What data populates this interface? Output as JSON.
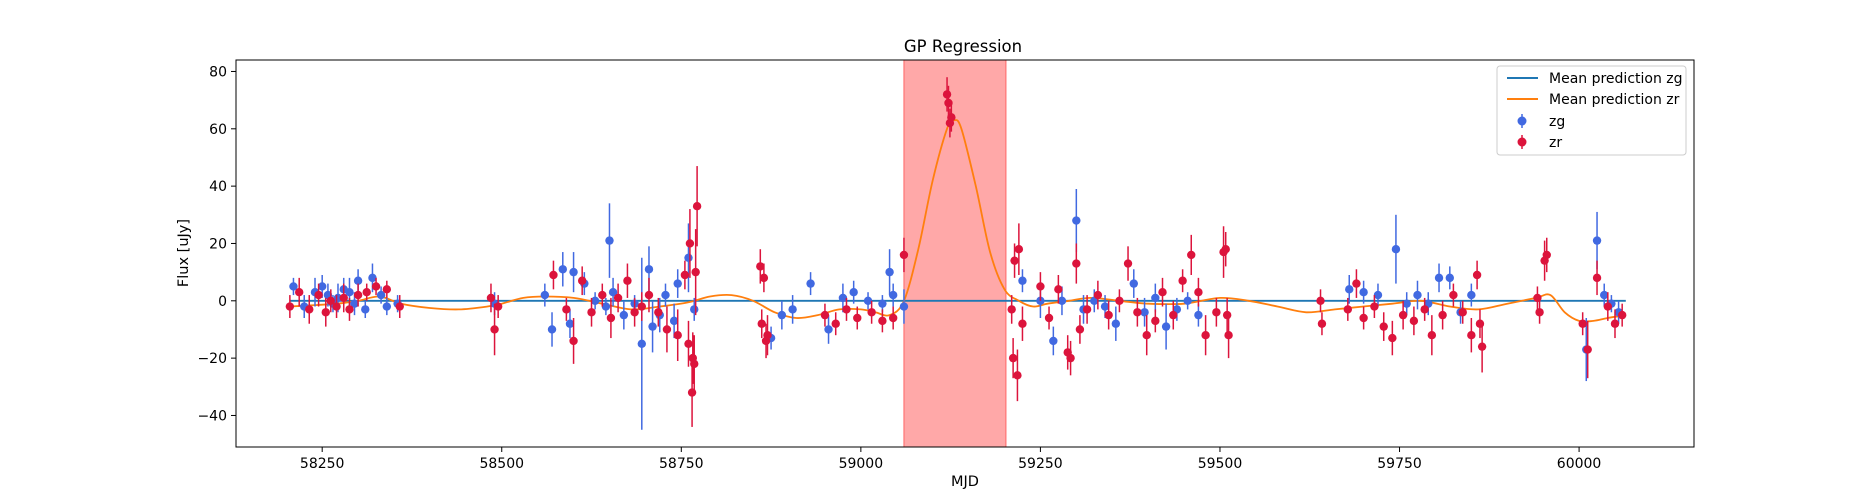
{
  "chart_data": {
    "type": "scatter",
    "title": "GP Regression",
    "xlabel": "MJD",
    "ylabel": "Flux [uJy]",
    "xlim": [
      58130,
      60160
    ],
    "ylim": [
      -51,
      84
    ],
    "xticks": [
      58250,
      58500,
      58750,
      59000,
      59250,
      59500,
      59750,
      60000
    ],
    "yticks": [
      -40,
      -20,
      0,
      20,
      40,
      60,
      80
    ],
    "grid": false,
    "legend_position": "top-right",
    "highlight_region": {
      "x0": 59060,
      "x1": 59202,
      "color": "#ff9999"
    },
    "lines": [
      {
        "name": "Mean prediction zg",
        "color": "#1f77b4",
        "x": [
          58205,
          60065
        ],
        "y": [
          0,
          0
        ]
      },
      {
        "name": "Mean prediction zr",
        "color": "#ff7f0e",
        "x": [
          58205,
          58240,
          58270,
          58300,
          58330,
          58360,
          58400,
          58440,
          58480,
          58500,
          58530,
          58560,
          58600,
          58640,
          58680,
          58720,
          58760,
          58790,
          58820,
          58850,
          58880,
          58910,
          58940,
          58970,
          59000,
          59020,
          59040,
          59060,
          59080,
          59100,
          59120,
          59130,
          59140,
          59160,
          59180,
          59200,
          59220,
          59240,
          59260,
          59290,
          59320,
          59360,
          59400,
          59450,
          59500,
          59540,
          59580,
          59620,
          59660,
          59700,
          59740,
          59780,
          59820,
          59860,
          59900,
          59940,
          59960,
          59980,
          60000,
          60020,
          60040,
          60065
        ],
        "y": [
          -2,
          -1.5,
          -1,
          0,
          1.5,
          -1,
          -2.5,
          -3,
          -2,
          -1,
          1,
          1.5,
          1,
          -1,
          -3,
          -2,
          -0.5,
          1.5,
          2,
          0,
          -4,
          -6,
          -5,
          -3,
          -3,
          -4,
          -5,
          0,
          18,
          42,
          60,
          63,
          60,
          40,
          17,
          4,
          0,
          -2,
          -1,
          0,
          1,
          0,
          -1,
          -1,
          1,
          0,
          -2,
          -4,
          -3,
          -2,
          -1,
          0,
          -2,
          -3,
          -1,
          1,
          2,
          -4,
          -7,
          -7,
          -6,
          -5
        ]
      }
    ],
    "series": [
      {
        "name": "zg",
        "color": "#4169e1",
        "points": [
          [
            58210,
            5,
            3
          ],
          [
            58225,
            -2,
            4
          ],
          [
            58240,
            3,
            5
          ],
          [
            58250,
            5,
            4
          ],
          [
            58258,
            2,
            4
          ],
          [
            58265,
            -1,
            3
          ],
          [
            58272,
            1,
            5
          ],
          [
            58280,
            4,
            4
          ],
          [
            58288,
            3,
            5
          ],
          [
            58295,
            -1,
            4
          ],
          [
            58300,
            7,
            4
          ],
          [
            58310,
            -3,
            3
          ],
          [
            58320,
            8,
            5
          ],
          [
            58332,
            2,
            3
          ],
          [
            58340,
            -2,
            3
          ],
          [
            58355,
            -1,
            3
          ],
          [
            58490,
            -1,
            4
          ],
          [
            58560,
            2,
            4
          ],
          [
            58570,
            -10,
            6
          ],
          [
            58585,
            11,
            6
          ],
          [
            58595,
            -8,
            5
          ],
          [
            58600,
            10,
            7
          ],
          [
            58615,
            6,
            4
          ],
          [
            58630,
            0,
            3
          ],
          [
            58645,
            -2,
            3
          ],
          [
            58650,
            21,
            13
          ],
          [
            58655,
            3,
            5
          ],
          [
            58670,
            -5,
            5
          ],
          [
            58685,
            -1,
            3
          ],
          [
            58695,
            -15,
            30
          ],
          [
            58705,
            11,
            8
          ],
          [
            58710,
            -9,
            9
          ],
          [
            58720,
            -5,
            6
          ],
          [
            58728,
            2,
            4
          ],
          [
            58740,
            -7,
            6
          ],
          [
            58745,
            6,
            5
          ],
          [
            58760,
            15,
            12
          ],
          [
            58768,
            -3,
            4
          ],
          [
            58875,
            -13,
            4
          ],
          [
            58890,
            -5,
            5
          ],
          [
            58905,
            -3,
            5
          ],
          [
            58930,
            6,
            4
          ],
          [
            58955,
            -10,
            5
          ],
          [
            58975,
            1,
            5
          ],
          [
            58990,
            3,
            4
          ],
          [
            59010,
            0,
            3
          ],
          [
            59030,
            -1,
            3
          ],
          [
            59040,
            10,
            8
          ],
          [
            59045,
            2,
            4
          ],
          [
            59060,
            -2,
            6
          ],
          [
            59225,
            7,
            4
          ],
          [
            59250,
            0,
            6
          ],
          [
            59268,
            -14,
            5
          ],
          [
            59280,
            0,
            5
          ],
          [
            59300,
            28,
            11
          ],
          [
            59310,
            -3,
            5
          ],
          [
            59325,
            0,
            4
          ],
          [
            59340,
            -2,
            4
          ],
          [
            59355,
            -8,
            6
          ],
          [
            59380,
            6,
            5
          ],
          [
            59395,
            -4,
            5
          ],
          [
            59410,
            1,
            5
          ],
          [
            59425,
            -9,
            8
          ],
          [
            59440,
            -3,
            4
          ],
          [
            59455,
            0,
            3
          ],
          [
            59470,
            -5,
            4
          ],
          [
            59680,
            4,
            5
          ],
          [
            59700,
            3,
            4
          ],
          [
            59720,
            2,
            4
          ],
          [
            59745,
            18,
            12
          ],
          [
            59760,
            -1,
            4
          ],
          [
            59775,
            2,
            5
          ],
          [
            59790,
            -1,
            4
          ],
          [
            59805,
            8,
            5
          ],
          [
            59820,
            8,
            4
          ],
          [
            59835,
            -4,
            4
          ],
          [
            59850,
            2,
            4
          ],
          [
            60010,
            -17,
            11
          ],
          [
            60025,
            21,
            10
          ],
          [
            60035,
            2,
            4
          ],
          [
            60045,
            -1,
            3
          ],
          [
            60055,
            -4,
            4
          ]
        ]
      },
      {
        "name": "zr",
        "color": "#dc143c",
        "points": [
          [
            58205,
            -2,
            4
          ],
          [
            58218,
            3,
            5
          ],
          [
            58232,
            -3,
            5
          ],
          [
            58245,
            2,
            4
          ],
          [
            58255,
            -4,
            5
          ],
          [
            58262,
            0,
            4
          ],
          [
            58270,
            -2,
            4
          ],
          [
            58280,
            1,
            5
          ],
          [
            58288,
            -3,
            4
          ],
          [
            58300,
            2,
            4
          ],
          [
            58312,
            3,
            3
          ],
          [
            58325,
            5,
            3
          ],
          [
            58340,
            4,
            3
          ],
          [
            58358,
            -2,
            4
          ],
          [
            58485,
            1,
            5
          ],
          [
            58490,
            -10,
            9
          ],
          [
            58495,
            -2,
            4
          ],
          [
            58572,
            9,
            5
          ],
          [
            58590,
            -3,
            4
          ],
          [
            58600,
            -14,
            8
          ],
          [
            58612,
            7,
            5
          ],
          [
            58625,
            -4,
            5
          ],
          [
            58640,
            2,
            4
          ],
          [
            58652,
            -6,
            7
          ],
          [
            58662,
            1,
            5
          ],
          [
            58675,
            7,
            6
          ],
          [
            58685,
            -4,
            5
          ],
          [
            58695,
            -2,
            5
          ],
          [
            58705,
            2,
            6
          ],
          [
            58718,
            -4,
            5
          ],
          [
            58730,
            -10,
            8
          ],
          [
            58745,
            -12,
            9
          ],
          [
            58755,
            9,
            5
          ],
          [
            58760,
            -15,
            8
          ],
          [
            58762,
            20,
            12
          ],
          [
            58765,
            -32,
            12
          ],
          [
            58766,
            -20,
            9
          ],
          [
            58768,
            -22,
            10
          ],
          [
            58770,
            10,
            15
          ],
          [
            58772,
            33,
            14
          ],
          [
            58860,
            12,
            6
          ],
          [
            58862,
            -8,
            5
          ],
          [
            58865,
            8,
            5
          ],
          [
            58868,
            -14,
            6
          ],
          [
            58870,
            -12,
            7
          ],
          [
            58950,
            -5,
            4
          ],
          [
            58965,
            -8,
            4
          ],
          [
            58980,
            -3,
            4
          ],
          [
            58995,
            -6,
            4
          ],
          [
            59015,
            -4,
            4
          ],
          [
            59030,
            -7,
            4
          ],
          [
            59045,
            -6,
            4
          ],
          [
            59060,
            16,
            6
          ],
          [
            59120,
            72,
            6
          ],
          [
            59122,
            69,
            6
          ],
          [
            59124,
            62,
            5
          ],
          [
            59126,
            64,
            5
          ],
          [
            59210,
            -3,
            5
          ],
          [
            59212,
            -20,
            7
          ],
          [
            59214,
            14,
            6
          ],
          [
            59218,
            -26,
            9
          ],
          [
            59220,
            18,
            9
          ],
          [
            59225,
            -8,
            6
          ],
          [
            59250,
            5,
            5
          ],
          [
            59262,
            -6,
            4
          ],
          [
            59275,
            4,
            5
          ],
          [
            59288,
            -18,
            6
          ],
          [
            59292,
            -20,
            6
          ],
          [
            59300,
            13,
            7
          ],
          [
            59305,
            -10,
            5
          ],
          [
            59315,
            -3,
            5
          ],
          [
            59330,
            2,
            5
          ],
          [
            59345,
            -5,
            5
          ],
          [
            59360,
            0,
            4
          ],
          [
            59372,
            13,
            6
          ],
          [
            59385,
            -4,
            5
          ],
          [
            59398,
            -12,
            7
          ],
          [
            59410,
            -7,
            4
          ],
          [
            59420,
            3,
            5
          ],
          [
            59435,
            -5,
            5
          ],
          [
            59448,
            7,
            4
          ],
          [
            59460,
            16,
            7
          ],
          [
            59470,
            3,
            5
          ],
          [
            59480,
            -12,
            7
          ],
          [
            59495,
            -4,
            5
          ],
          [
            59505,
            17,
            9
          ],
          [
            59508,
            18,
            6
          ],
          [
            59510,
            -5,
            6
          ],
          [
            59512,
            -12,
            8
          ],
          [
            59640,
            0,
            4
          ],
          [
            59642,
            -8,
            4
          ],
          [
            59678,
            -3,
            4
          ],
          [
            59690,
            6,
            5
          ],
          [
            59700,
            -6,
            4
          ],
          [
            59715,
            -2,
            4
          ],
          [
            59728,
            -9,
            5
          ],
          [
            59740,
            -13,
            6
          ],
          [
            59755,
            -5,
            5
          ],
          [
            59770,
            -7,
            5
          ],
          [
            59785,
            -3,
            4
          ],
          [
            59795,
            -12,
            7
          ],
          [
            59810,
            -5,
            5
          ],
          [
            59825,
            2,
            4
          ],
          [
            59838,
            -4,
            4
          ],
          [
            59850,
            -12,
            6
          ],
          [
            59858,
            9,
            5
          ],
          [
            59862,
            -8,
            5
          ],
          [
            59865,
            -16,
            9
          ],
          [
            59942,
            1,
            4
          ],
          [
            59945,
            -4,
            4
          ],
          [
            59952,
            14,
            7
          ],
          [
            59955,
            16,
            6
          ],
          [
            60005,
            -8,
            4
          ],
          [
            60012,
            -17,
            10
          ],
          [
            60025,
            8,
            6
          ],
          [
            60040,
            -2,
            5
          ],
          [
            60050,
            -8,
            5
          ],
          [
            60060,
            -5,
            4
          ]
        ]
      }
    ]
  }
}
